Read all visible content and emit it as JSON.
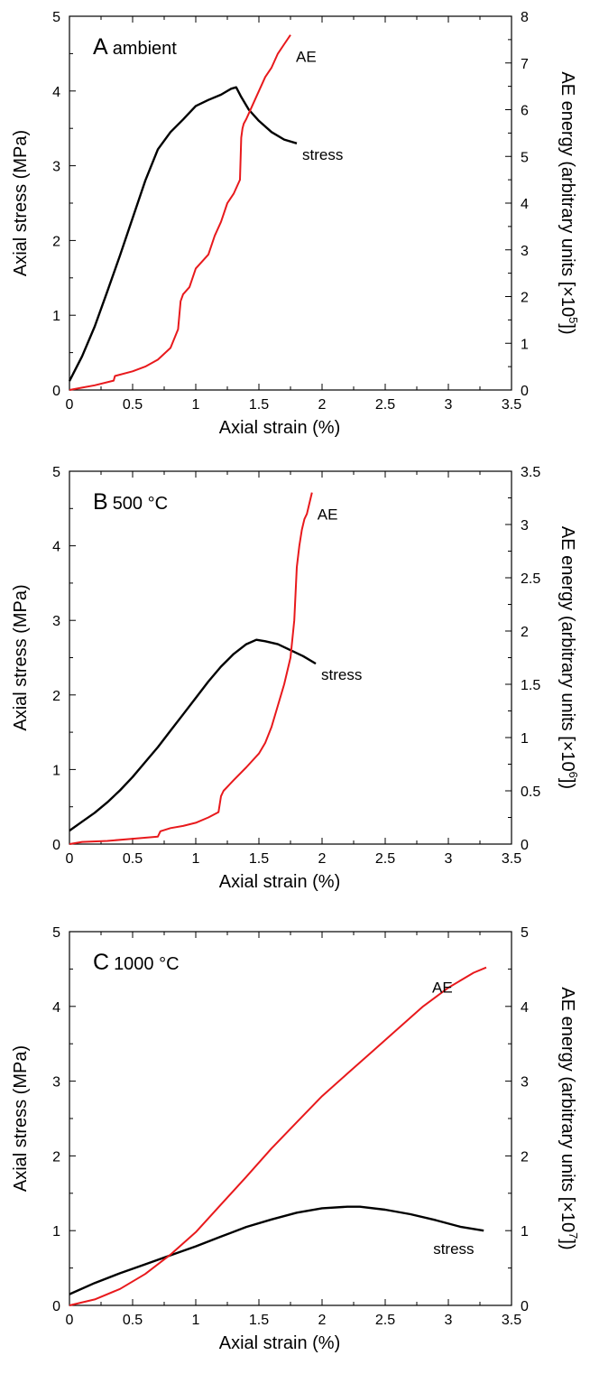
{
  "colors": {
    "stress": "#000000",
    "ae": "#e8191c",
    "axis": "#000000"
  },
  "chart_data": [
    {
      "type": "line",
      "panel": "A",
      "title": "ambient",
      "xlabel": "Axial strain (%)",
      "ylabel": "Axial stress (MPa)",
      "y2label_prefix": "AE energy (arbitrary units [×10",
      "y2label_exp": "5",
      "y2label_suffix": "])",
      "xlim": [
        0,
        3.5
      ],
      "ylim": [
        0,
        5
      ],
      "y2lim": [
        0,
        8
      ],
      "xticks": [
        "0",
        "0.5",
        "1",
        "1.5",
        "2",
        "2.5",
        "3",
        "3.5"
      ],
      "yticks": [
        "0",
        "1",
        "2",
        "3",
        "4",
        "5"
      ],
      "y2ticks": [
        "0",
        "1",
        "2",
        "3",
        "4",
        "5",
        "6",
        "7",
        "8"
      ],
      "series": [
        {
          "name": "stress",
          "axis": "left",
          "x": [
            0,
            0.1,
            0.2,
            0.3,
            0.4,
            0.5,
            0.6,
            0.7,
            0.8,
            0.9,
            1.0,
            1.1,
            1.2,
            1.28,
            1.32,
            1.36,
            1.42,
            1.5,
            1.6,
            1.7,
            1.8
          ],
          "y": [
            0.12,
            0.45,
            0.85,
            1.32,
            1.8,
            2.3,
            2.8,
            3.22,
            3.45,
            3.62,
            3.8,
            3.88,
            3.95,
            4.03,
            4.05,
            3.92,
            3.75,
            3.6,
            3.45,
            3.35,
            3.3
          ]
        },
        {
          "name": "AE",
          "axis": "right",
          "x": [
            0,
            0.1,
            0.2,
            0.35,
            0.36,
            0.5,
            0.6,
            0.7,
            0.8,
            0.86,
            0.88,
            0.9,
            0.95,
            1.0,
            1.1,
            1.15,
            1.2,
            1.25,
            1.3,
            1.35,
            1.36,
            1.37,
            1.38,
            1.4,
            1.45,
            1.5,
            1.55,
            1.6,
            1.65,
            1.7,
            1.75
          ],
          "y": [
            0,
            0.05,
            0.1,
            0.2,
            0.3,
            0.4,
            0.5,
            0.65,
            0.9,
            1.3,
            1.9,
            2.05,
            2.2,
            2.6,
            2.9,
            3.3,
            3.6,
            4.0,
            4.2,
            4.5,
            5.4,
            5.6,
            5.7,
            5.8,
            6.1,
            6.4,
            6.7,
            6.9,
            7.2,
            7.4,
            7.6
          ]
        }
      ]
    },
    {
      "type": "line",
      "panel": "B",
      "title": "500 °C",
      "xlabel": "Axial strain (%)",
      "ylabel": "Axial stress (MPa)",
      "y2label_prefix": "AE energy (arbitrary units [×10",
      "y2label_exp": "6",
      "y2label_suffix": "])",
      "xlim": [
        0,
        3.5
      ],
      "ylim": [
        0,
        5
      ],
      "y2lim": [
        0,
        3.5
      ],
      "xticks": [
        "0",
        "0.5",
        "1",
        "1.5",
        "2",
        "2.5",
        "3",
        "3.5"
      ],
      "yticks": [
        "0",
        "1",
        "2",
        "3",
        "4",
        "5"
      ],
      "y2ticks": [
        "0",
        "0.5",
        "1",
        "1.5",
        "2",
        "2.5",
        "3",
        "3.5"
      ],
      "series": [
        {
          "name": "stress",
          "axis": "left",
          "x": [
            0,
            0.1,
            0.2,
            0.3,
            0.4,
            0.5,
            0.6,
            0.7,
            0.8,
            0.9,
            1.0,
            1.1,
            1.2,
            1.3,
            1.4,
            1.48,
            1.55,
            1.65,
            1.75,
            1.85,
            1.95
          ],
          "y": [
            0.18,
            0.3,
            0.42,
            0.56,
            0.72,
            0.9,
            1.1,
            1.3,
            1.52,
            1.74,
            1.96,
            2.18,
            2.38,
            2.55,
            2.68,
            2.74,
            2.72,
            2.68,
            2.6,
            2.52,
            2.42
          ],
          "label": "stress"
        },
        {
          "name": "AE",
          "axis": "right",
          "x": [
            0,
            0.1,
            0.3,
            0.5,
            0.7,
            0.72,
            0.8,
            0.9,
            1.0,
            1.1,
            1.18,
            1.2,
            1.22,
            1.3,
            1.4,
            1.5,
            1.55,
            1.6,
            1.65,
            1.7,
            1.75,
            1.78,
            1.8,
            1.82,
            1.84,
            1.86,
            1.88,
            1.9,
            1.92
          ],
          "y": [
            0,
            0.02,
            0.03,
            0.05,
            0.07,
            0.12,
            0.15,
            0.17,
            0.2,
            0.25,
            0.3,
            0.45,
            0.5,
            0.6,
            0.72,
            0.85,
            0.95,
            1.1,
            1.3,
            1.5,
            1.75,
            2.1,
            2.6,
            2.8,
            2.95,
            3.05,
            3.1,
            3.2,
            3.3
          ]
        }
      ]
    },
    {
      "type": "line",
      "panel": "C",
      "title": "1000 °C",
      "xlabel": "Axial strain (%)",
      "ylabel": "Axial stress (MPa)",
      "y2label_prefix": "AE energy (arbitrary units [×10",
      "y2label_exp": "7",
      "y2label_suffix": "])",
      "xlim": [
        0,
        3.5
      ],
      "ylim": [
        0,
        5
      ],
      "y2lim": [
        0,
        5
      ],
      "xticks": [
        "0",
        "0.5",
        "1",
        "1.5",
        "2",
        "2.5",
        "3",
        "3.5"
      ],
      "yticks": [
        "0",
        "1",
        "2",
        "3",
        "4",
        "5"
      ],
      "y2ticks": [
        "0",
        "1",
        "2",
        "3",
        "4",
        "5"
      ],
      "series": [
        {
          "name": "stress",
          "axis": "left",
          "x": [
            0,
            0.2,
            0.4,
            0.6,
            0.8,
            1.0,
            1.2,
            1.4,
            1.6,
            1.8,
            2.0,
            2.2,
            2.3,
            2.5,
            2.7,
            2.9,
            3.1,
            3.28
          ],
          "y": [
            0.15,
            0.3,
            0.43,
            0.55,
            0.67,
            0.79,
            0.92,
            1.05,
            1.15,
            1.24,
            1.3,
            1.32,
            1.32,
            1.28,
            1.22,
            1.14,
            1.05,
            1.0
          ]
        },
        {
          "name": "AE",
          "axis": "right",
          "x": [
            0,
            0.2,
            0.4,
            0.6,
            0.8,
            1.0,
            1.2,
            1.4,
            1.6,
            1.8,
            2.0,
            2.2,
            2.4,
            2.6,
            2.8,
            3.0,
            3.2,
            3.3
          ],
          "y": [
            0,
            0.08,
            0.22,
            0.42,
            0.68,
            0.98,
            1.35,
            1.72,
            2.1,
            2.45,
            2.8,
            3.1,
            3.4,
            3.7,
            4.0,
            4.25,
            4.45,
            4.52
          ]
        }
      ]
    }
  ]
}
